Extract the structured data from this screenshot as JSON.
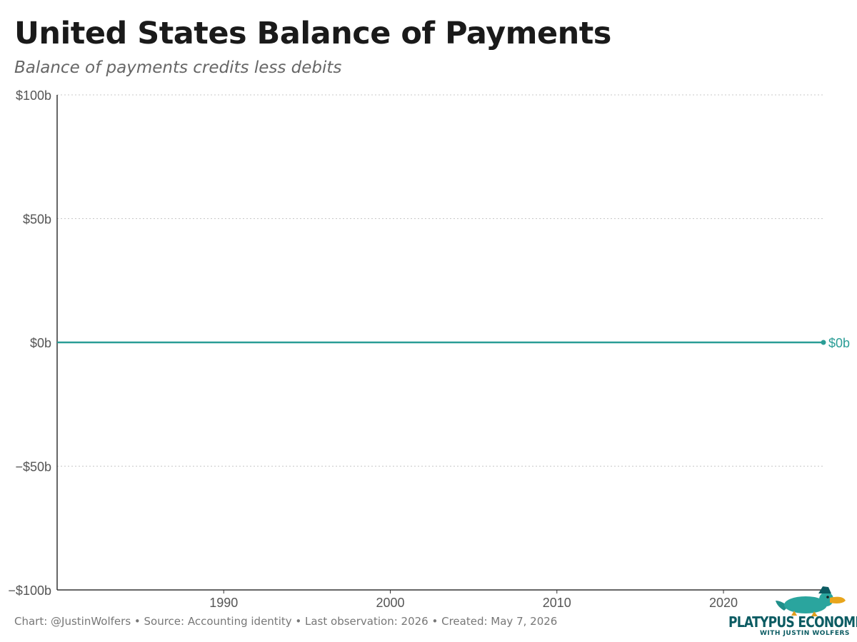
{
  "header": {
    "title": "United States Balance of Payments",
    "subtitle": "Balance of payments credits less debits"
  },
  "footer": {
    "text": "Chart: @JustinWolfers • Source: Accounting identity • Last observation: 2026 • Created: May 7, 2026"
  },
  "logo": {
    "name": "PLATYPUS ECONOMICS",
    "tagline": "WITH JUSTIN WOLFERS",
    "icon": "platypus-icon"
  },
  "colors": {
    "series": "#2a9d96",
    "gridline": "#c8c8c8",
    "axis": "#333333",
    "logo": "#0b5b62"
  },
  "chart_data": {
    "type": "line",
    "title": "United States Balance of Payments",
    "subtitle": "Balance of payments credits less debits",
    "xlim": [
      1980,
      2026
    ],
    "ylim": [
      -100,
      100
    ],
    "x_ticks": [
      1990,
      2000,
      2010,
      2020
    ],
    "x_tick_labels": [
      "1990",
      "2000",
      "2010",
      "2020"
    ],
    "y_ticks": [
      -100,
      -50,
      0,
      50,
      100
    ],
    "y_tick_labels": [
      "−$100b",
      "−$50b",
      "$0b",
      "$50b",
      "$100b"
    ],
    "grid": "horizontal dotted",
    "series": [
      {
        "x": [
          1980,
          2026
        ],
        "y": [
          0,
          0
        ],
        "end_label": "$0b",
        "color": "#2a9d96"
      }
    ]
  }
}
